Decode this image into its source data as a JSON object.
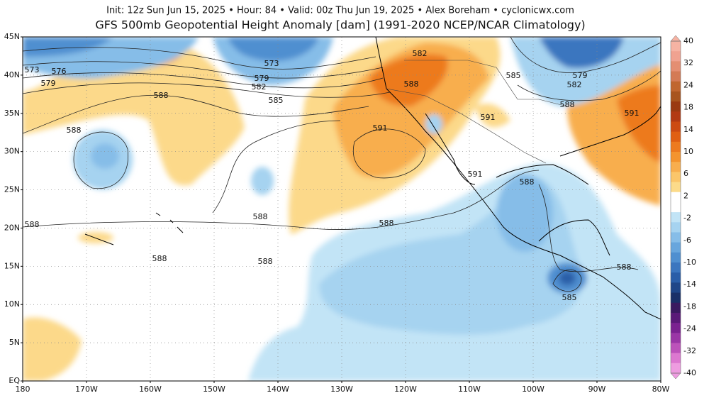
{
  "header": {
    "info": "Init: 12z Sun Jun 15, 2025 • Hour: 84 • Valid: 00z Thu Jun 19, 2025 • Alex Boreham • cyclonicwx.com",
    "title": "GFS 500mb Geopotential Height Anomaly [dam] (1991-2020 NCEP/NCAR Climatology)"
  },
  "lat_labels": [
    "45N",
    "40N",
    "35N",
    "30N",
    "25N",
    "20N",
    "15N",
    "10N",
    "5N",
    "EQ"
  ],
  "lon_labels": [
    "180",
    "170W",
    "160W",
    "150W",
    "140W",
    "130W",
    "120W",
    "110W",
    "100W",
    "90W",
    "80W"
  ],
  "colorbar": {
    "labels": [
      40,
      32,
      24,
      18,
      14,
      10,
      6,
      2,
      -2,
      -6,
      -10,
      -14,
      -18,
      -24,
      -32,
      -40
    ],
    "colors": [
      "#f6b3a3",
      "#f0a290",
      "#e48e72",
      "#d47a55",
      "#c0662f",
      "#a8541e",
      "#9a3a12",
      "#b23a14",
      "#cc4a12",
      "#e05f12",
      "#ed7a1e",
      "#f4942e",
      "#f8ae4e",
      "#fbc66a",
      "#fcdb8a",
      "#ffffff",
      "#ffffff",
      "#c2e4f6",
      "#a6d3f0",
      "#86bde8",
      "#68a6dd",
      "#4f8fd0",
      "#3b76bf",
      "#2a5ea8",
      "#1f4688",
      "#1a3068",
      "#3a1a60",
      "#5a1a78",
      "#7a2290",
      "#9a36a6",
      "#bc52ba",
      "#dc78d0",
      "#ee9ce0"
    ]
  },
  "contour_labels": [
    "573",
    "576",
    "579",
    "573",
    "579",
    "582",
    "585",
    "588",
    "588",
    "591",
    "582",
    "588",
    "585",
    "579",
    "582",
    "588",
    "591",
    "591",
    "591",
    "588",
    "588",
    "588",
    "588",
    "588",
    "588",
    "588",
    "585"
  ]
}
